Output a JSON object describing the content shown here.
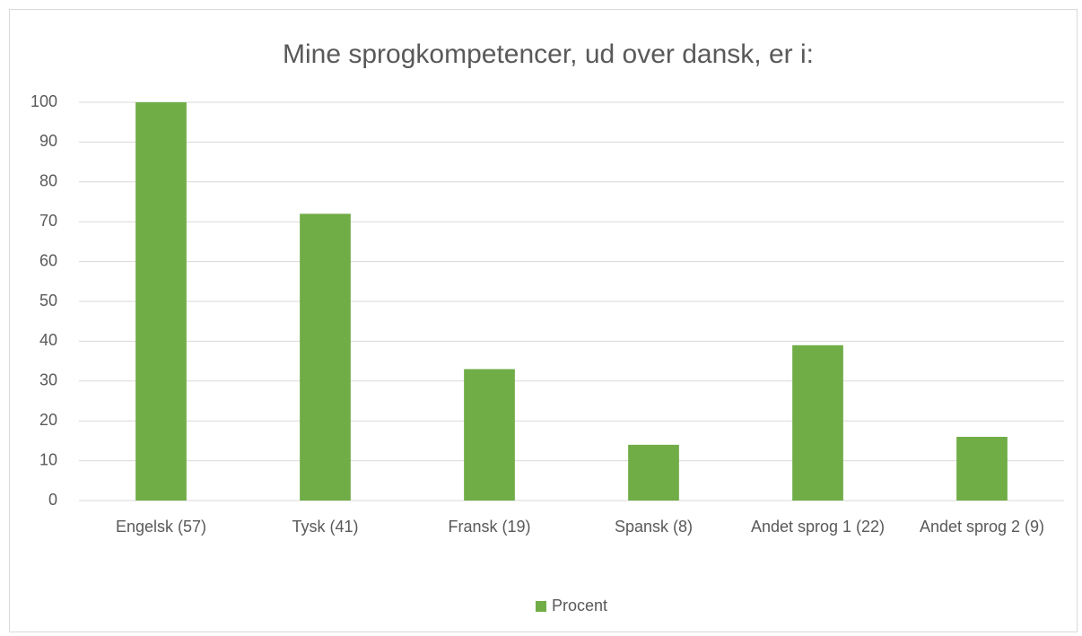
{
  "chart_data": {
    "type": "bar",
    "title": "Mine sprogkompetencer, ud over dansk, er i:",
    "categories": [
      "Engelsk (57)",
      "Tysk (41)",
      "Fransk (19)",
      "Spansk (8)",
      "Andet sprog 1 (22)",
      "Andet sprog 2 (9)"
    ],
    "series": [
      {
        "name": "Procent",
        "color": "#70ad47",
        "values": [
          100,
          72,
          33,
          14,
          39,
          16
        ]
      }
    ],
    "ylim": [
      0,
      100
    ],
    "yticks": [
      0,
      10,
      20,
      30,
      40,
      50,
      60,
      70,
      80,
      90,
      100
    ],
    "grid": true,
    "legend": "bottom"
  }
}
